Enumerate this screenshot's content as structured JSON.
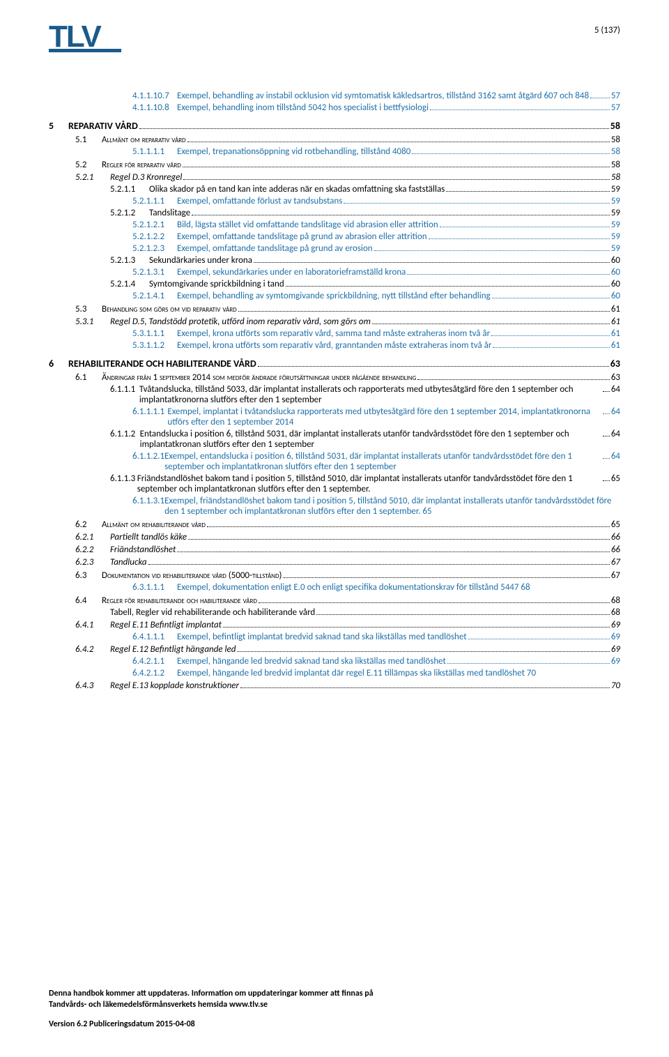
{
  "page_indicator": "5 (137)",
  "logo_text": "TLV",
  "colors": {
    "brand": "#1c5a8a",
    "link": "#1f6fa8",
    "text": "#000000"
  },
  "toc": [
    {
      "level": "lvl-4",
      "blue": true,
      "num": "4.1.1.10.7",
      "label": "Exempel, behandling av instabil ocklusion vid symtomatisk käkledsartros, tillstånd 3162 samt åtgärd 607 och 848",
      "page": "57",
      "wrap": true
    },
    {
      "level": "lvl-4",
      "blue": true,
      "num": "4.1.1.10.8",
      "label": "Exempel, behandling inom tillstånd 5042 hos specialist i bettfysiologi",
      "page": "57"
    },
    {
      "level": "lvl-ch",
      "num": "5",
      "label": "REPARATIV VÅRD",
      "page": "58"
    },
    {
      "level": "lvl-1",
      "smallcaps": true,
      "num": "5.1",
      "label": "Allmänt om reparativ vård",
      "page": "58"
    },
    {
      "level": "lvl-4",
      "blue": true,
      "num": "5.1.1.1.1",
      "label": "Exempel, trepanationsöppning vid rotbehandling, tillstånd 4080",
      "page": "58"
    },
    {
      "level": "lvl-1",
      "smallcaps": true,
      "num": "5.2",
      "label": "Regler för reparativ vård",
      "page": "58"
    },
    {
      "level": "lvl-2",
      "italic": true,
      "num": "5.2.1",
      "label": "Regel D.3 Kronregel",
      "page": "58"
    },
    {
      "level": "lvl-3",
      "num": "5.2.1.1",
      "label": "Olika skador på en tand kan inte adderas när en skadas omfattning ska fastställas",
      "page": "59"
    },
    {
      "level": "lvl-4",
      "blue": true,
      "num": "5.2.1.1.1",
      "label": "Exempel, omfattande förlust av tandsubstans",
      "page": "59"
    },
    {
      "level": "lvl-3",
      "num": "5.2.1.2",
      "label": "Tandslitage",
      "page": "59"
    },
    {
      "level": "lvl-4",
      "blue": true,
      "num": "5.2.1.2.1",
      "label": "Bild, lägsta stället vid omfattande tandslitage vid abrasion eller attrition",
      "page": "59"
    },
    {
      "level": "lvl-4",
      "blue": true,
      "num": "5.2.1.2.2",
      "label": "Exempel, omfattande tandslitage på grund av abrasion eller attrition",
      "page": "59"
    },
    {
      "level": "lvl-4",
      "blue": true,
      "num": "5.2.1.2.3",
      "label": "Exempel, omfattande tandslitage på grund av erosion",
      "page": "59"
    },
    {
      "level": "lvl-3",
      "num": "5.2.1.3",
      "label": "Sekundärkaries under krona",
      "page": "60"
    },
    {
      "level": "lvl-4",
      "blue": true,
      "num": "5.2.1.3.1",
      "label": "Exempel, sekundärkaries under en laboratorieframställd krona",
      "page": "60"
    },
    {
      "level": "lvl-3",
      "num": "5.2.1.4",
      "label": "Symtomgivande sprickbildning i tand",
      "page": "60"
    },
    {
      "level": "lvl-4",
      "blue": true,
      "num": "5.2.1.4.1",
      "label": "Exempel, behandling av symtomgivande sprickbildning, nytt tillstånd efter behandling",
      "page": "60"
    },
    {
      "level": "lvl-1",
      "smallcaps": true,
      "num": "5.3",
      "label": "Behandling som görs om vid reparativ vård",
      "page": "61"
    },
    {
      "level": "lvl-2",
      "italic": true,
      "num": "5.3.1",
      "label": "Regel D.5, Tandstödd protetik, utförd inom reparativ vård, som görs om",
      "page": "61"
    },
    {
      "level": "lvl-4",
      "blue": true,
      "num": "5.3.1.1.1",
      "label": "Exempel, krona utförts som reparativ vård, samma tand måste extraheras inom två år",
      "page": "61"
    },
    {
      "level": "lvl-4",
      "blue": true,
      "num": "5.3.1.1.2",
      "label": "Exempel, krona utförts som reparativ vård, granntanden måste extraheras inom två år",
      "page": "61"
    },
    {
      "level": "lvl-ch",
      "num": "6",
      "label": "REHABILITERANDE OCH HABILITERANDE VÅRD",
      "page": "63"
    },
    {
      "level": "lvl-1",
      "smallcaps": true,
      "num": "6.1",
      "label": "Ändringar från 1 september 2014 som medför ändrade förutsättningar under pågående behandling",
      "page": "63",
      "wrap": "lvl1"
    },
    {
      "level": "lvl-3",
      "num": "6.1.1.1",
      "label": "Tvåtandslucka, tillstånd 5033, där implantat installerats och rapporterats med utbytesåtgärd före den 1 september och implantatkronorna slutförs efter den 1 september",
      "page": "64",
      "wrap": true
    },
    {
      "level": "lvl-4",
      "blue": true,
      "num": "6.1.1.1.1",
      "label": "Exempel, implantat i tvåtandslucka rapporterats med utbytesåtgärd före den 1 september 2014, implantatkronorna utförs efter den 1 september 2014",
      "page": "64",
      "wrap": true
    },
    {
      "level": "lvl-3",
      "num": "6.1.1.2",
      "label": "Entandslucka i position 6, tillstånd 5031, där implantat installerats utanför tandvårdsstödet före den 1 september och implantatkronan slutförs efter den 1 september",
      "page": "64",
      "wrap": true
    },
    {
      "level": "lvl-4",
      "blue": true,
      "num": "6.1.1.2.1",
      "label": "Exempel, entandslucka i position 6, tillstånd 5031, där implantat installerats utanför tandvårdsstödet före den 1 september och implantatkronan slutförs efter den 1 september",
      "page": "64",
      "wrap": true
    },
    {
      "level": "lvl-3",
      "num": "6.1.1.3",
      "label": "Friändstandlöshet bakom tand i position 5, tillstånd 5010, där implantat installerats utanför tandvårdsstödet före den 1 september och implantatkronan slutförs efter den 1 september.",
      "page": "65",
      "wrap": true
    },
    {
      "level": "lvl-4",
      "blue": true,
      "num": "6.1.1.3.1",
      "label": "Exempel, friändstandlöshet bakom tand i position 5, tillstånd 5010, där implantat installerats utanför tandvårdsstödet före den 1 september och implantatkronan slutförs efter den 1 september.",
      "page_inline": "65",
      "wrap": true
    },
    {
      "level": "lvl-1",
      "smallcaps": true,
      "num": "6.2",
      "label": "Allmänt om rehabiliterande vård",
      "page": "65"
    },
    {
      "level": "lvl-2",
      "italic": true,
      "num": "6.2.1",
      "label": "Partiellt tandlös käke",
      "page": "66"
    },
    {
      "level": "lvl-2",
      "italic": true,
      "num": "6.2.2",
      "label": "Friändstandlöshet",
      "page": "66"
    },
    {
      "level": "lvl-2",
      "italic": true,
      "num": "6.2.3",
      "label": "Tandlucka",
      "page": "67"
    },
    {
      "level": "lvl-1",
      "smallcaps": true,
      "num": "6.3",
      "label": "Dokumentation vid rehabiliterande vård (5000-tillstånd)",
      "page": "67"
    },
    {
      "level": "lvl-4",
      "blue": true,
      "num": "6.3.1.1.1",
      "label": "Exempel, dokumentation enligt E.0 och enligt specifika dokumentationskrav för tillstånd 5447",
      "page_inline": "68",
      "wrap": true
    },
    {
      "level": "lvl-1",
      "smallcaps": true,
      "num": "6.4",
      "label": "Regler för rehabiliterande och habiliterande vård",
      "page": "68"
    },
    {
      "level": "plain",
      "label": "Tabell, Regler vid rehabiliterande och habiliterande vård",
      "page": "68"
    },
    {
      "level": "lvl-2",
      "italic": true,
      "num": "6.4.1",
      "label": "Regel E.11 Befintligt implantat",
      "page": "69"
    },
    {
      "level": "lvl-4",
      "blue": true,
      "num": "6.4.1.1.1",
      "label": "Exempel, befintligt implantat bredvid saknad tand ska likställas med tandlöshet",
      "page": "69"
    },
    {
      "level": "lvl-2",
      "italic": true,
      "num": "6.4.2",
      "label": "Regel E.12 Befintligt hängande led",
      "page": "69"
    },
    {
      "level": "lvl-4",
      "blue": true,
      "num": "6.4.2.1.1",
      "label": "Exempel, hängande led bredvid saknad tand ska likställas med tandlöshet",
      "page": "69"
    },
    {
      "level": "lvl-4",
      "blue": true,
      "num": "6.4.2.1.2",
      "label": "Exempel, hängande led bredvid implantat där regel E.11 tillämpas ska likställas med tandlöshet",
      "page_inline": "70",
      "wrap": true
    },
    {
      "level": "lvl-2",
      "italic": true,
      "num": "6.4.3",
      "label": "Regel E.13 kopplade konstruktioner",
      "page": "70"
    }
  ],
  "footer": {
    "line1": "Denna handbok kommer att uppdateras. Information om uppdateringar kommer att finnas på",
    "line2": "Tandvårds- och läkemedelsförmånsverkets hemsida www.tlv.se",
    "version": "Version 6.2  Publiceringsdatum 2015-04-08"
  }
}
